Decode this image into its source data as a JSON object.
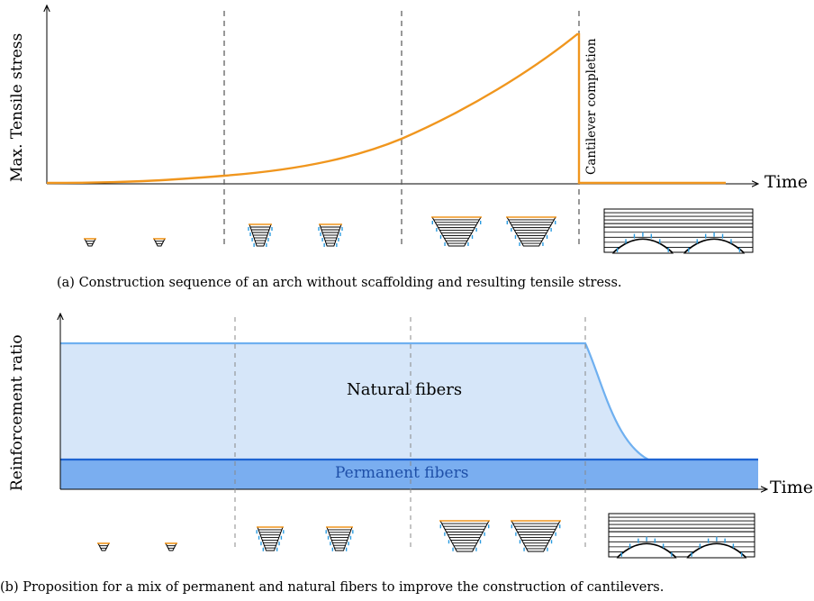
{
  "panel_a": {
    "y_label": "Max. Tensile stress",
    "x_label": "Time",
    "annotation": "Cantilever completion",
    "caption": "(a) Construction sequence of an arch without scaffolding and resulting tensile stress."
  },
  "panel_b": {
    "y_label": "Reinforcement ratio",
    "x_label": "Time",
    "region_natural": "Natural fibers",
    "region_permanent": "Permanent fibers",
    "caption": "(b) Proposition for a mix of permanent and natural fibers to improve the construction of cantilevers."
  },
  "colors": {
    "stress_curve": "#f0961e",
    "natural_fill": "#d6e6f9",
    "natural_line": "#6fb0f0",
    "permanent_fill": "#7aaef0",
    "permanent_line": "#1e64d2",
    "arch_water": "#2a9be0"
  }
}
